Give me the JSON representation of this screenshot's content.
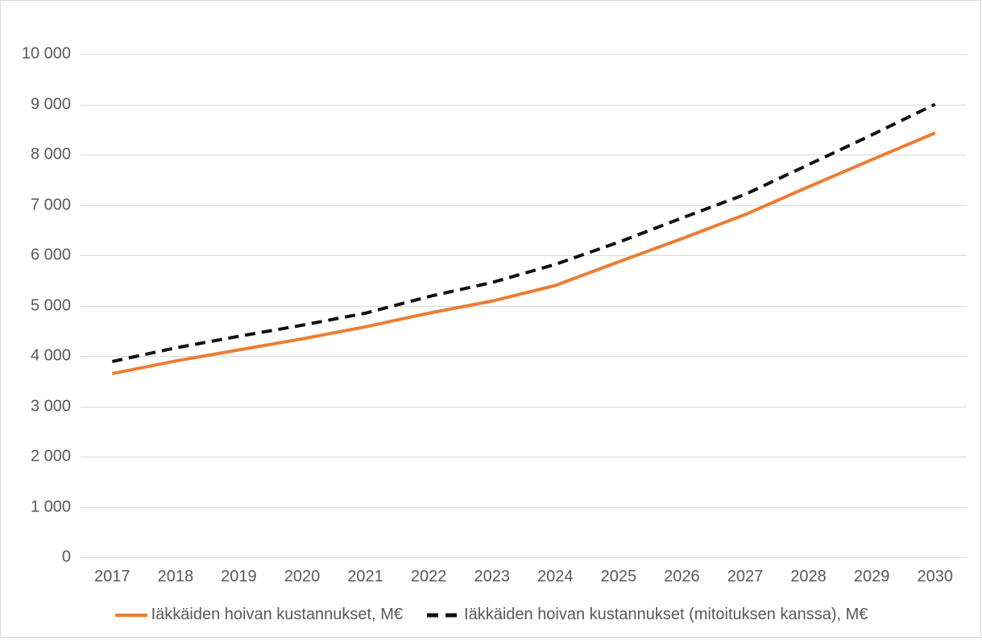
{
  "chart_data": {
    "type": "line",
    "title": "",
    "xlabel": "",
    "ylabel": "",
    "categories": [
      "2017",
      "2018",
      "2019",
      "2020",
      "2021",
      "2022",
      "2023",
      "2024",
      "2025",
      "2026",
      "2027",
      "2028",
      "2029",
      "2030"
    ],
    "series": [
      {
        "name": "Iäkkäiden hoivan kustannukset, M€",
        "color": "#ED7D31",
        "line_style": "solid",
        "values": [
          3650,
          3900,
          4120,
          4340,
          4580,
          4850,
          5090,
          5400,
          5870,
          6330,
          6810,
          7360,
          7900,
          8430
        ]
      },
      {
        "name": "Iäkkäiden hoivan kustannukset (mitoituksen kanssa), M€",
        "color": "#111111",
        "line_style": "dashed",
        "values": [
          3890,
          4160,
          4390,
          4610,
          4850,
          5180,
          5460,
          5820,
          6260,
          6740,
          7210,
          7800,
          8390,
          9000
        ]
      }
    ],
    "ylim": [
      0,
      10000
    ],
    "ytick_step": 1000,
    "ytick_labels": [
      "0",
      "1 000",
      "2 000",
      "3 000",
      "4 000",
      "5 000",
      "6 000",
      "7 000",
      "8 000",
      "9 000",
      "10 000"
    ],
    "grid": true,
    "legend_position": "bottom"
  },
  "colors": {
    "background": "#ffffff",
    "grid": "#d9d9d9",
    "border": "#d9d9d9",
    "axis_text": "#595959",
    "series1": "#ED7D31",
    "series2": "#111111"
  }
}
